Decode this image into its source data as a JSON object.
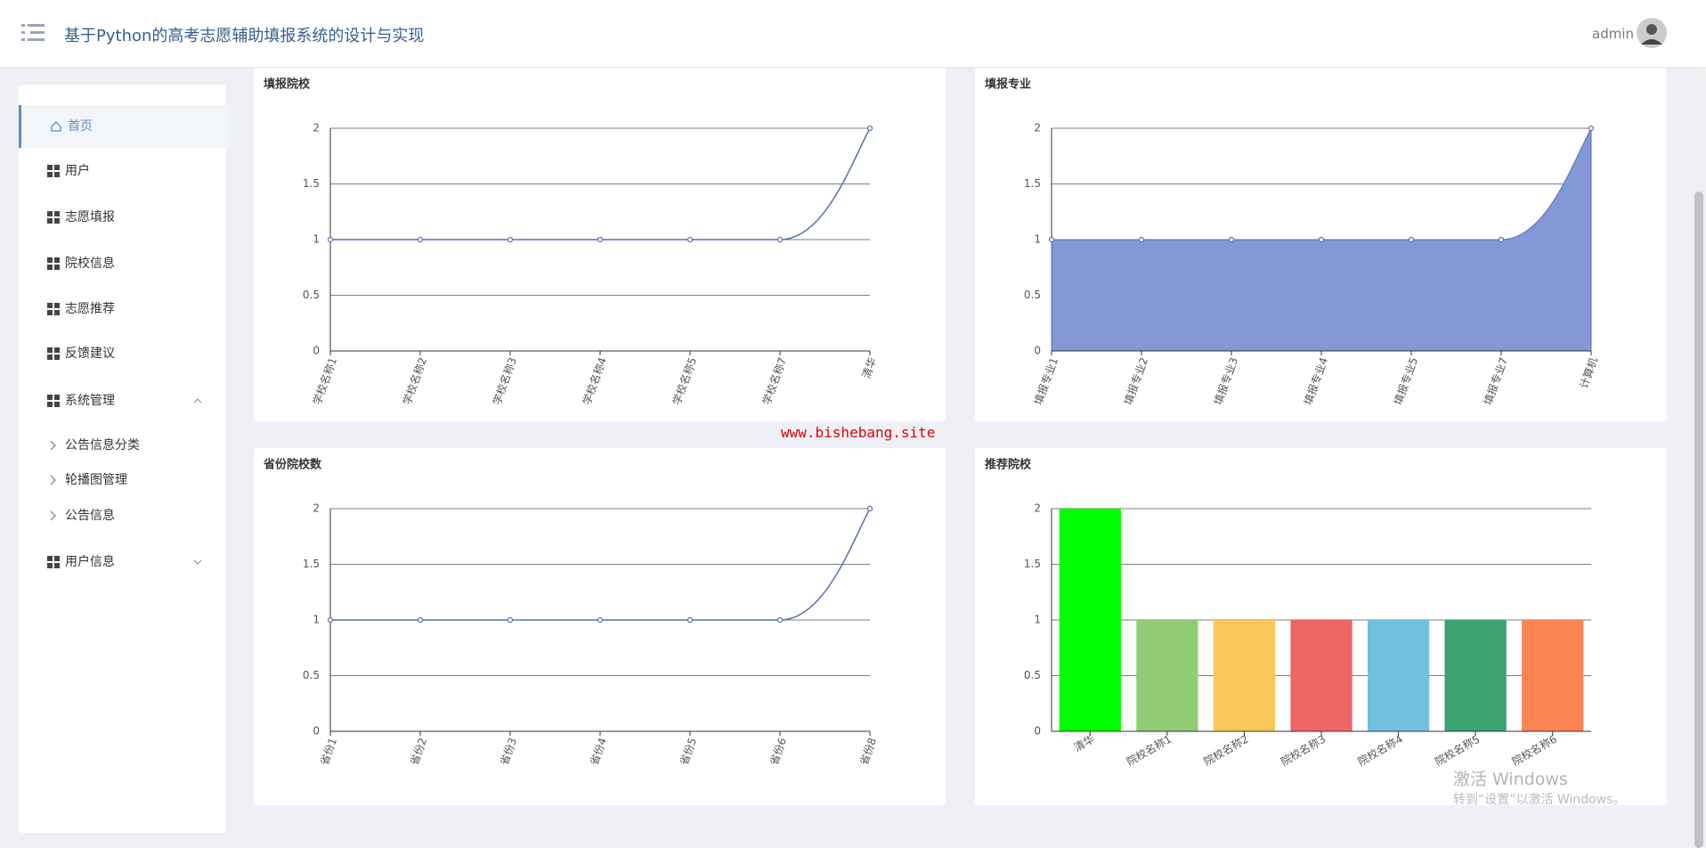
{
  "header": {
    "title": "基于Python的高考志愿辅助填报系统的设计与实现",
    "user": "admin"
  },
  "sidebar": {
    "items": [
      "首页",
      "用户",
      "志愿填报",
      "院校信息",
      "志愿推荐",
      "反馈建议"
    ],
    "system": "系统管理",
    "sub_items": [
      "公告信息分类",
      "轮播图管理",
      "公告信息"
    ],
    "user_info": "用户信息"
  },
  "watermark": "www.bishebang.site",
  "os_notice": {
    "title": "激活 Windows",
    "text": "转到“设置”以激活 Windows。"
  },
  "chart_data": [
    {
      "type": "line",
      "title": "填报院校",
      "categories": [
        "学校名称1",
        "学校名称2",
        "学校名称3",
        "学校名称4",
        "学校名称5",
        "学校名称7",
        "清华"
      ],
      "values": [
        1,
        1,
        1,
        1,
        1,
        1,
        2
      ],
      "color": "#5b6fb0",
      "ylim": [
        0,
        2
      ],
      "yticks": [
        0,
        0.5,
        1,
        1.5,
        2
      ],
      "grid": true
    },
    {
      "type": "area",
      "title": "填报专业",
      "categories": [
        "填报专业1",
        "填报专业2",
        "填报专业3",
        "填报专业4",
        "填报专业5",
        "填报专业7",
        "计算机"
      ],
      "values": [
        1,
        1,
        1,
        1,
        1,
        1,
        2
      ],
      "color": "#8497d6",
      "ylim": [
        0,
        2
      ],
      "yticks": [
        0,
        0.5,
        1,
        1.5,
        2
      ],
      "grid": true
    },
    {
      "type": "line",
      "title": "省份院校数",
      "categories": [
        "省份1",
        "省份2",
        "省份3",
        "省份4",
        "省份5",
        "省份6",
        "省份8"
      ],
      "values": [
        1,
        1,
        1,
        1,
        1,
        1,
        2
      ],
      "color": "#5b6fb0",
      "ylim": [
        0,
        2
      ],
      "yticks": [
        0,
        0.5,
        1,
        1.5,
        2
      ],
      "grid": true
    },
    {
      "type": "bar",
      "title": "推荐院校",
      "categories": [
        "清华",
        "院校名称1",
        "院校名称2",
        "院校名称3",
        "院校名称4",
        "院校名称5",
        "院校名称6"
      ],
      "values": [
        2,
        1,
        1,
        1,
        1,
        1,
        1
      ],
      "colors": [
        "#00ff00",
        "#91cc75",
        "#fac858",
        "#ee6666",
        "#73c0de",
        "#3ba272",
        "#fc8452"
      ],
      "ylim": [
        0,
        2
      ],
      "yticks": [
        0,
        0.5,
        1,
        1.5,
        2
      ],
      "grid": true
    }
  ]
}
